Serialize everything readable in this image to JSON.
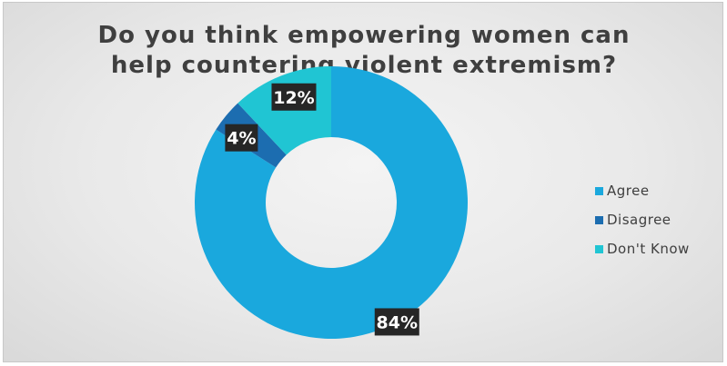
{
  "chart_data": {
    "type": "pie",
    "subtype": "doughnut",
    "title_lines": [
      "Do you think empowering women can",
      "help countering violent extremism?"
    ],
    "categories": [
      "Agree",
      "Disagree",
      "Don't Know"
    ],
    "values": [
      84,
      4,
      12
    ],
    "data_labels": [
      "84%",
      "4%",
      "12%"
    ],
    "colors": [
      "#1aa8dd",
      "#1c6db0",
      "#20c5d3"
    ],
    "legend_position": "right"
  }
}
